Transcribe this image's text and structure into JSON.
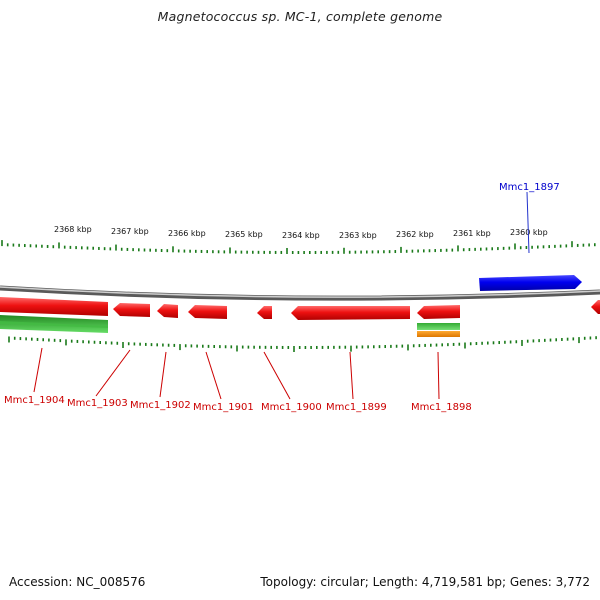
{
  "title": "Magnetococcus sp. MC-1, complete genome",
  "footer": {
    "accession": "Accession: NC_008576",
    "summary": "Topology: circular; Length: 4,719,581 bp; Genes: 3,772"
  },
  "colors": {
    "forward_gene": "#0000ee",
    "reverse_gene": "#ee0000",
    "label_forward": "#0000cc",
    "label_reverse": "#cc0000",
    "tick": "#1a7a1a",
    "backbone": "#808080",
    "rna_green": "#22aa22",
    "rna_orange": "#ee8800"
  },
  "ruler_labels": [
    "2368 kbp",
    "2367 kbp",
    "2366 kbp",
    "2365 kbp",
    "2364 kbp",
    "2363 kbp",
    "2362 kbp",
    "2361 kbp",
    "2360 kbp"
  ],
  "genes": [
    {
      "name": "Mmc1_1897",
      "strand": "forward"
    },
    {
      "name": "Mmc1_1898",
      "strand": "reverse"
    },
    {
      "name": "Mmc1_1899",
      "strand": "reverse"
    },
    {
      "name": "Mmc1_1900",
      "strand": "reverse"
    },
    {
      "name": "Mmc1_1901",
      "strand": "reverse"
    },
    {
      "name": "Mmc1_1902",
      "strand": "reverse"
    },
    {
      "name": "Mmc1_1903",
      "strand": "reverse"
    },
    {
      "name": "Mmc1_1904",
      "strand": "reverse"
    }
  ]
}
